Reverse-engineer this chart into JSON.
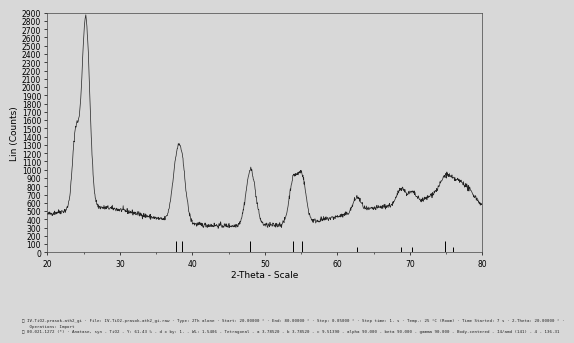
{
  "title": "",
  "xlabel": "2-Theta - Scale",
  "ylabel": "Lin (Counts)",
  "xlim": [
    20,
    80
  ],
  "ylim": [
    0,
    2900
  ],
  "ytick_step": 100,
  "xticks": [
    20,
    30,
    40,
    50,
    60,
    70,
    80
  ],
  "background_color": "#d8d8d8",
  "plot_bg_color": "#d8d8d8",
  "line_color": "#222222",
  "line_width": 0.5,
  "ref_lines_x": [
    37.8,
    38.6,
    48.0,
    53.9,
    55.1,
    62.7,
    68.8,
    70.3,
    74.9,
    76.0
  ],
  "ref_lines_tall": [
    37.8,
    38.6,
    48.0,
    53.9,
    55.1,
    74.9
  ],
  "footer_text1": "IV-TiO2-prasok-ath2_gi · File: IV-TiO2-prasok-ath2_gi.raw · Type: 2Th alone · Start: 20.00000 ° · End: 80.00000 ° · Step: 0.05000 ° · Step time: 1. s · Temp.: 25 °C (Room) · Time Started: 7 s · 2-Theta: 20.00000 ° ·",
  "footer_text1b": "Operations: Import",
  "footer_text2": "00-021-1272 (*) · Anatase, syn - TiO2 - Y: 61.43 % - d x by: 1. - WL: 1.5406 - Tetragonal - a 3.78520 - b 3.78520 - c 9.51390 - alpha 90.000 - beta 90.000 - gamma 90.000 - Body-centered - I4/amd (141) - 4 - 136.31"
}
